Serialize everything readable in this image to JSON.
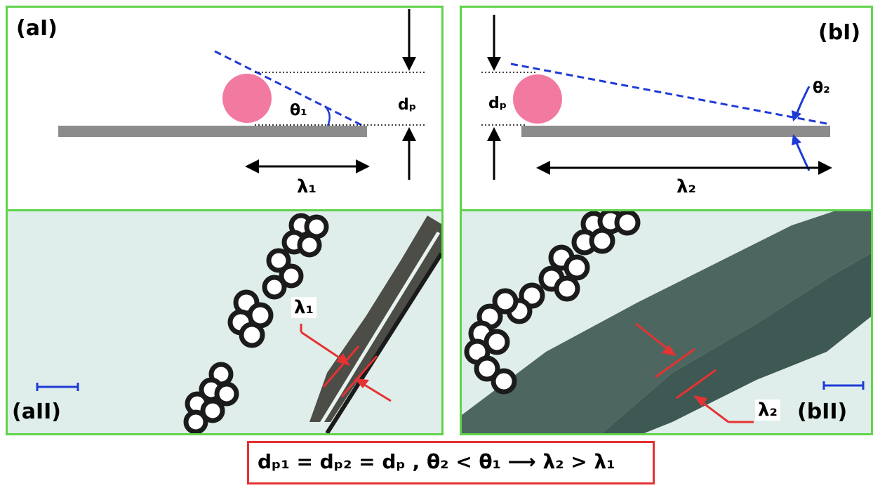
{
  "panels": {
    "aI": {
      "label": "(aI)",
      "theta": "θ₁",
      "lambda": "λ₁",
      "dp": "dₚ"
    },
    "bI": {
      "label": "(bI)",
      "theta": "θ₂",
      "lambda": "λ₂",
      "dp": "dₚ"
    },
    "aII": {
      "label": "(aII)",
      "lambda": "λ₁"
    },
    "bII": {
      "label": "(bII)",
      "lambda": "λ₂"
    }
  },
  "formula": "dₚ₁ = dₚ₂ = dₚ , θ₂ < θ₁ ⟶ λ₂ > λ₁",
  "colors": {
    "panel_border": "#5fd34a",
    "formula_border": "#e53232",
    "particle": "#f27aa0",
    "substrate": "#8c8c8c",
    "dashed_line": "#1f3bd6",
    "annotation_red": "#e53232",
    "scale_bar": "#1f3bd6"
  }
}
